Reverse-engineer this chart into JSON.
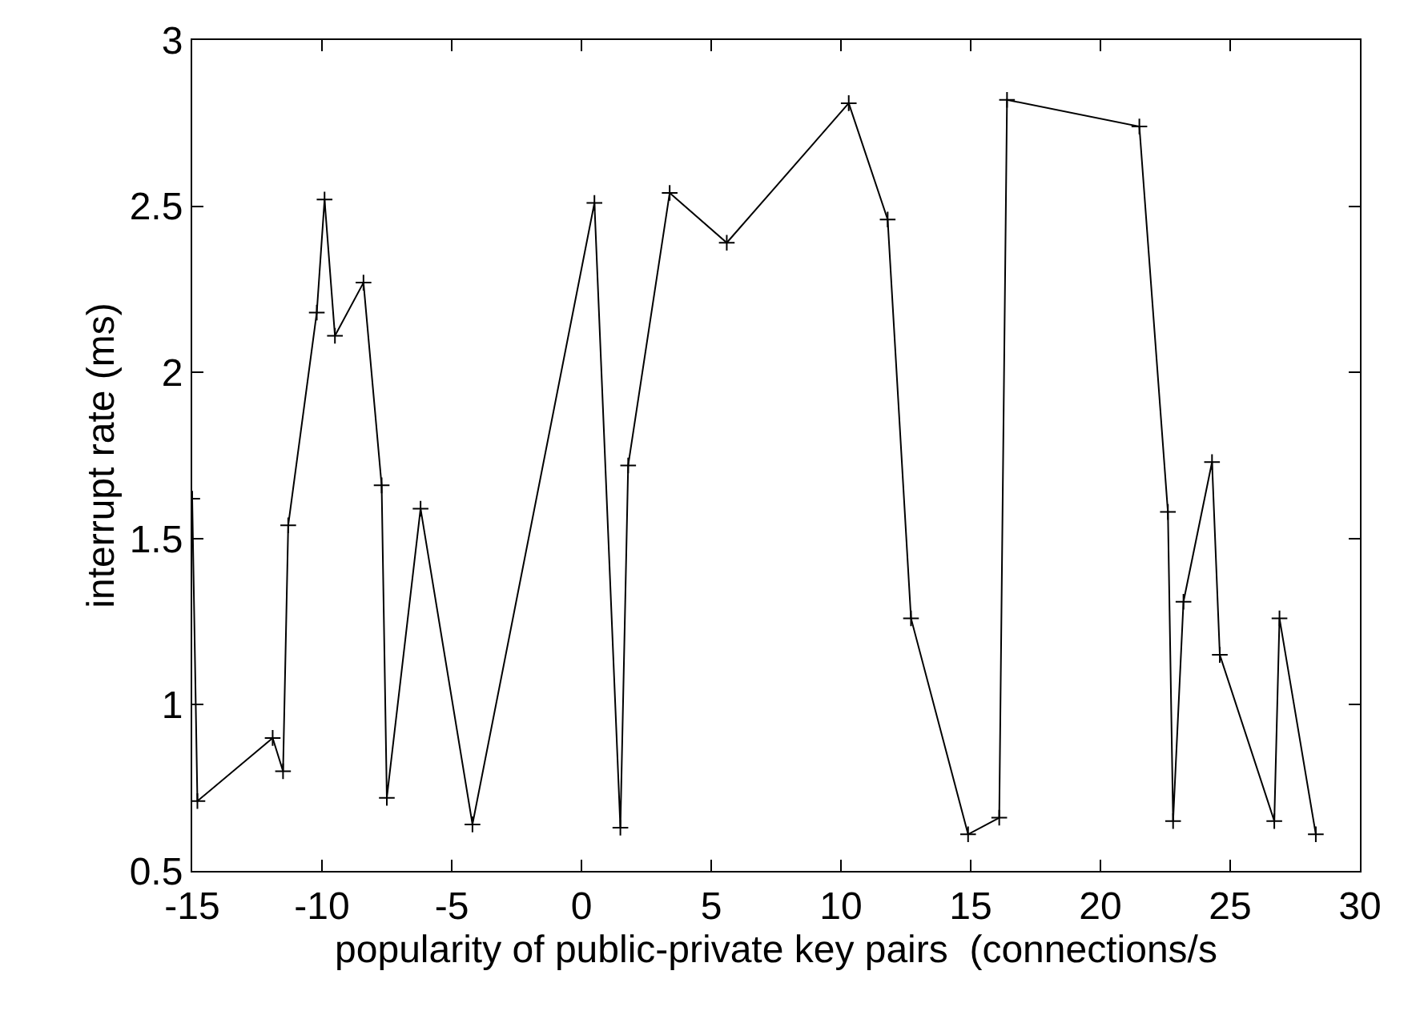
{
  "chart_data": {
    "type": "line",
    "xlabel": "popularity of public-private key pairs  (connections/s",
    "ylabel": "interrupt rate (ms)",
    "x": [
      -15.0,
      -14.8,
      -11.9,
      -11.5,
      -11.3,
      -10.2,
      -9.9,
      -9.5,
      -8.4,
      -7.7,
      -7.5,
      -6.2,
      -4.2,
      0.5,
      1.5,
      1.8,
      3.4,
      5.6,
      10.3,
      11.8,
      12.7,
      14.9,
      16.1,
      16.4,
      21.5,
      22.6,
      22.8,
      23.2,
      24.3,
      24.6,
      26.7,
      26.9,
      28.3
    ],
    "series": [
      {
        "color": "#000000",
        "values": [
          1.62,
          0.71,
          0.9,
          0.8,
          1.54,
          2.18,
          2.52,
          2.11,
          2.27,
          1.66,
          0.72,
          1.59,
          0.64,
          2.51,
          0.63,
          1.72,
          2.54,
          2.39,
          2.81,
          2.46,
          1.26,
          0.61,
          0.66,
          2.82,
          2.74,
          1.58,
          0.65,
          1.31,
          1.73,
          1.15,
          0.65,
          1.26,
          0.61
        ]
      }
    ],
    "xlim": [
      -15,
      30
    ],
    "ylim": [
      0.5,
      3
    ],
    "xticks": [
      -15,
      -10,
      -5,
      0,
      5,
      10,
      15,
      20,
      25,
      30
    ],
    "yticks": [
      0.5,
      1,
      1.5,
      2,
      2.5,
      3
    ],
    "marker": "cross",
    "line_style": "solid"
  }
}
